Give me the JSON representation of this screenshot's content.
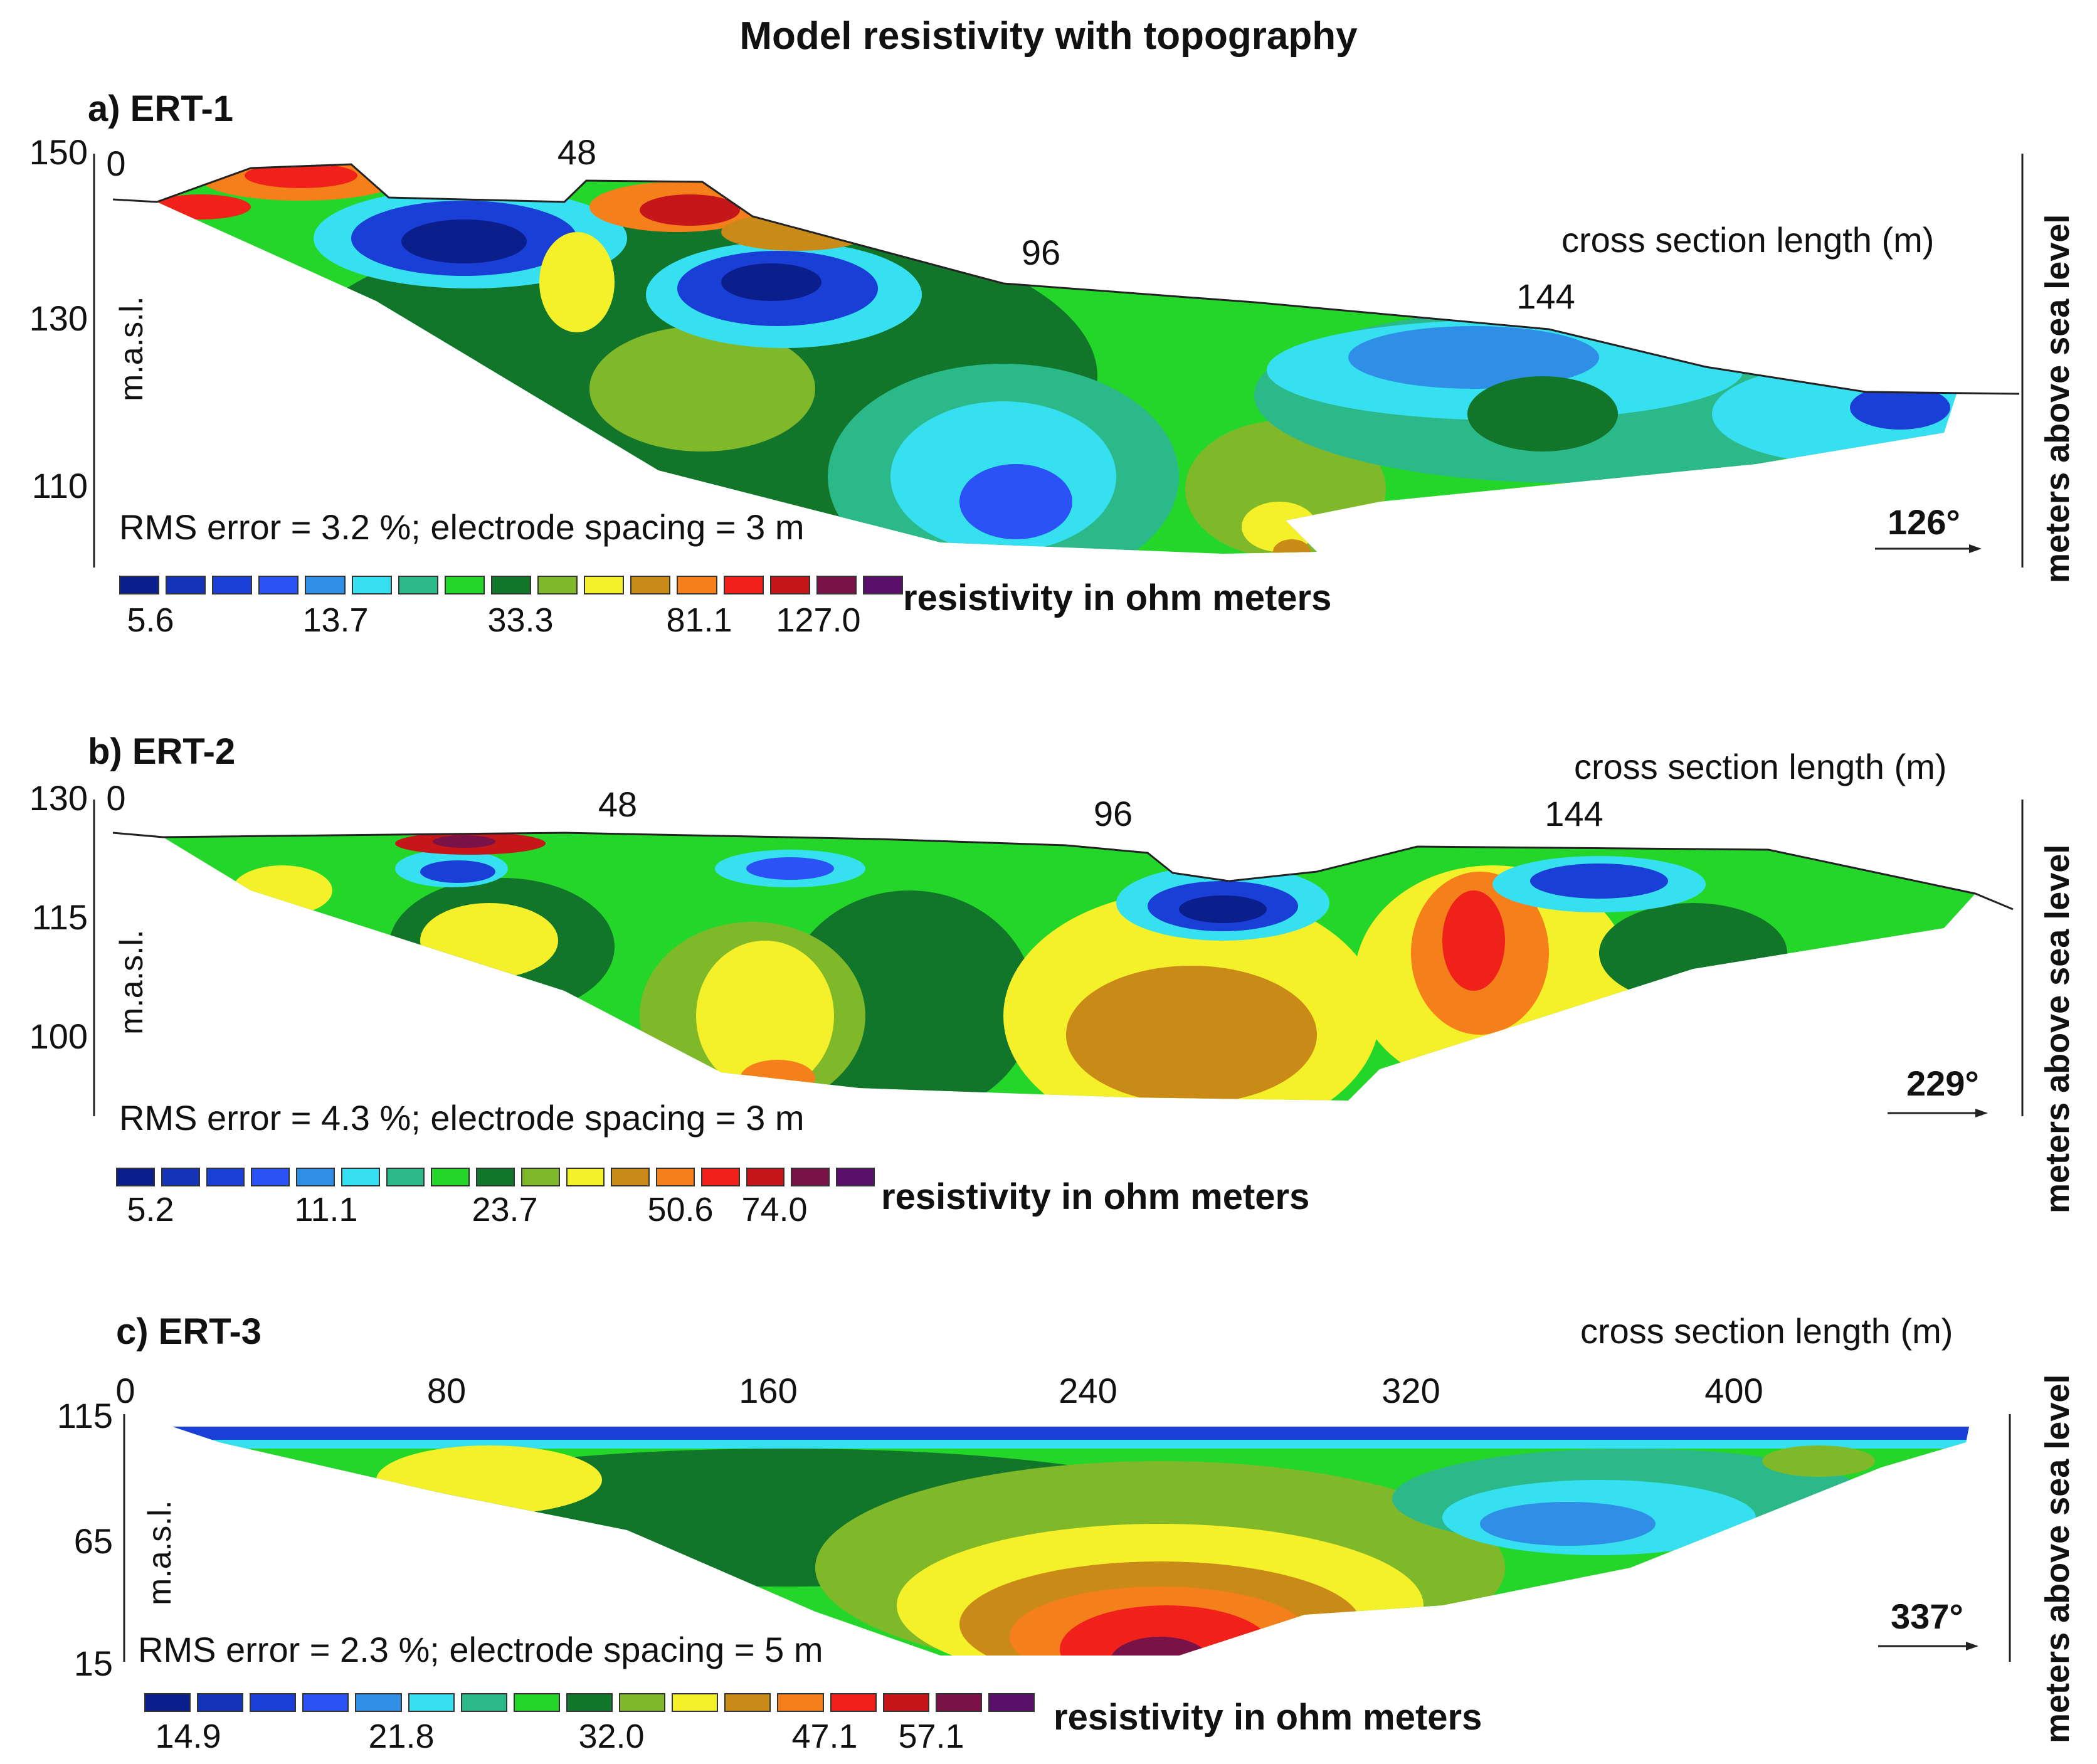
{
  "title": "Model resistivity with topography",
  "palette": [
    "#0b1f8c",
    "#1433b8",
    "#1a3fd6",
    "#2a52f5",
    "#2f8fe6",
    "#36e0f0",
    "#2bb98a",
    "#25d62a",
    "#12762a",
    "#7fb92a",
    "#f4f02a",
    "#c98a18",
    "#f57f1a",
    "#f0201a",
    "#c5161a",
    "#7a1248",
    "#5a0f6a"
  ],
  "chart_data": [
    {
      "type": "heatmap",
      "panel": "a) ERT-1",
      "xlabel": "cross section length (m)",
      "ylabel_left": "m.a.s.l.",
      "ylabel_right": "meters above sea level",
      "x_ticks": [
        "0",
        "48",
        "96",
        "144"
      ],
      "y_ticks": [
        "150",
        "130",
        "110"
      ],
      "rms_text": "RMS error = 3.2 %; electrode spacing = 3 m",
      "azimuth": "126°",
      "legend_title": "resistivity in ohm meters",
      "legend_values": [
        "5.6",
        "13.7",
        "33.3",
        "81.1",
        "127.0"
      ]
    },
    {
      "type": "heatmap",
      "panel": "b) ERT-2",
      "xlabel": "cross section length (m)",
      "ylabel_left": "m.a.s.l.",
      "ylabel_right": "meters above sea level",
      "x_ticks": [
        "0",
        "48",
        "96",
        "144"
      ],
      "y_ticks": [
        "130",
        "115",
        "100"
      ],
      "rms_text": "RMS error = 4.3 %; electrode spacing = 3 m",
      "azimuth": "229°",
      "legend_title": "resistivity in ohm meters",
      "legend_values": [
        "5.2",
        "11.1",
        "23.7",
        "50.6",
        "74.0"
      ]
    },
    {
      "type": "heatmap",
      "panel": "c) ERT-3",
      "xlabel": "cross section length (m)",
      "ylabel_left": "m.a.s.l.",
      "ylabel_right": "meters above sea level",
      "x_ticks": [
        "0",
        "80",
        "160",
        "240",
        "320",
        "400"
      ],
      "y_ticks": [
        "115",
        "65",
        "15"
      ],
      "rms_text": "RMS error = 2.3 %; electrode spacing = 5 m",
      "azimuth": "337°",
      "legend_title": "resistivity in ohm meters",
      "legend_values": [
        "14.9",
        "21.8",
        "32.0",
        "47.1",
        "57.1"
      ]
    }
  ]
}
